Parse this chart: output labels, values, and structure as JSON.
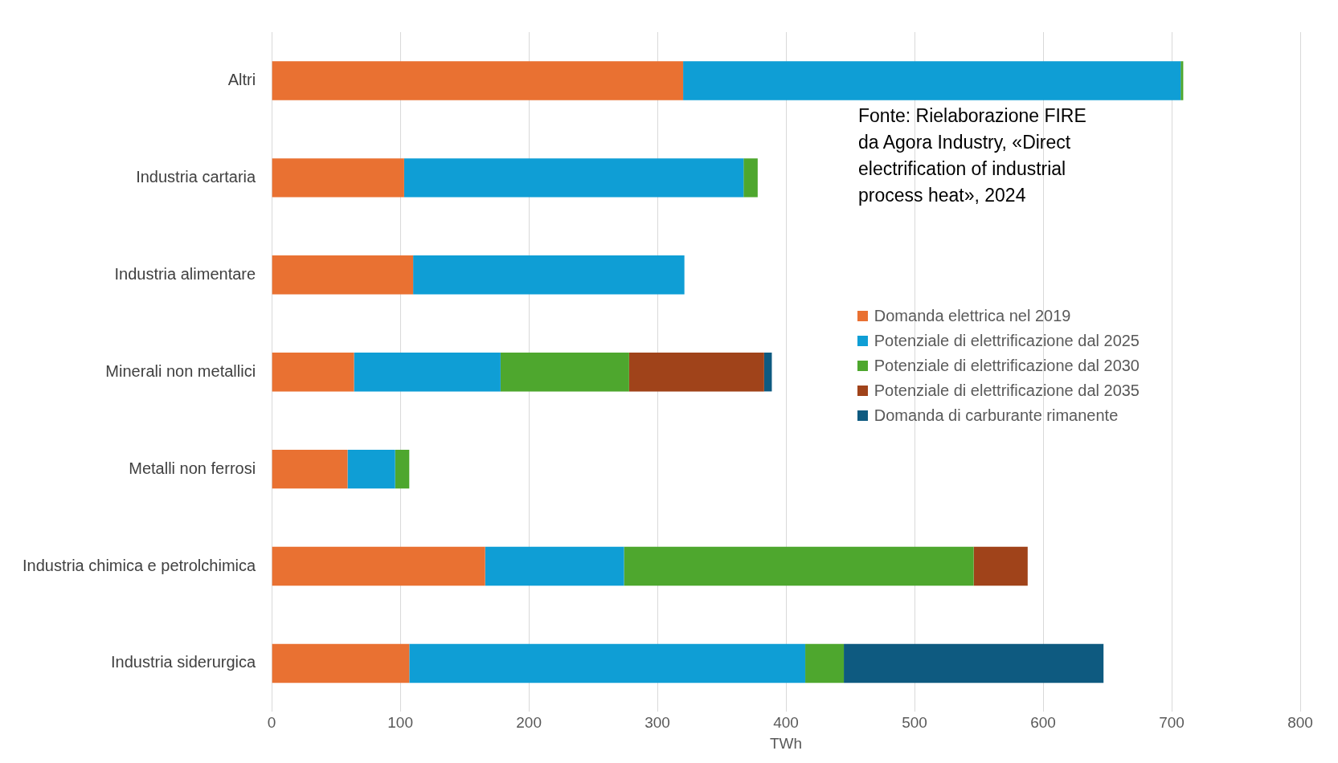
{
  "chart_data": {
    "type": "bar",
    "orientation": "horizontal",
    "stacked": true,
    "xlabel": "TWh",
    "categories": [
      "Altri",
      "Industria cartaria",
      "Industria alimentare",
      "Minerali non metallici",
      "Metalli non ferrosi",
      "Industria chimica e petrolchimica",
      "Industria siderurgica"
    ],
    "series": [
      {
        "name": "Domanda elettrica nel 2019",
        "color": "#e97132",
        "values": [
          320,
          103,
          110,
          64,
          59,
          166,
          107
        ]
      },
      {
        "name": "Potenziale di elettrificazione dal 2025",
        "color": "#0f9ed5",
        "values": [
          387,
          264,
          211,
          114,
          37,
          108,
          308
        ]
      },
      {
        "name": "Potenziale di elettrificazione dal 2030",
        "color": "#4ea72e",
        "values": [
          2,
          11,
          null,
          100,
          11,
          272,
          30
        ]
      },
      {
        "name": "Potenziale di elettrificazione dal 2035",
        "color": "#a0431a",
        "values": [
          null,
          null,
          null,
          105,
          null,
          42,
          null
        ]
      },
      {
        "name": "Domanda di carburante rimanente",
        "color": "#0e5a80",
        "values": [
          null,
          null,
          null,
          6,
          null,
          null,
          202
        ]
      }
    ],
    "xlim": [
      0,
      800
    ],
    "xticks": [
      0,
      100,
      200,
      300,
      400,
      500,
      600,
      700,
      800
    ],
    "grid": "x",
    "legend": "right",
    "annotations": [
      "Fonte: Rielaborazione FIRE da Agora Industry, «Direct electrification of industrial process heat», 2024"
    ]
  }
}
